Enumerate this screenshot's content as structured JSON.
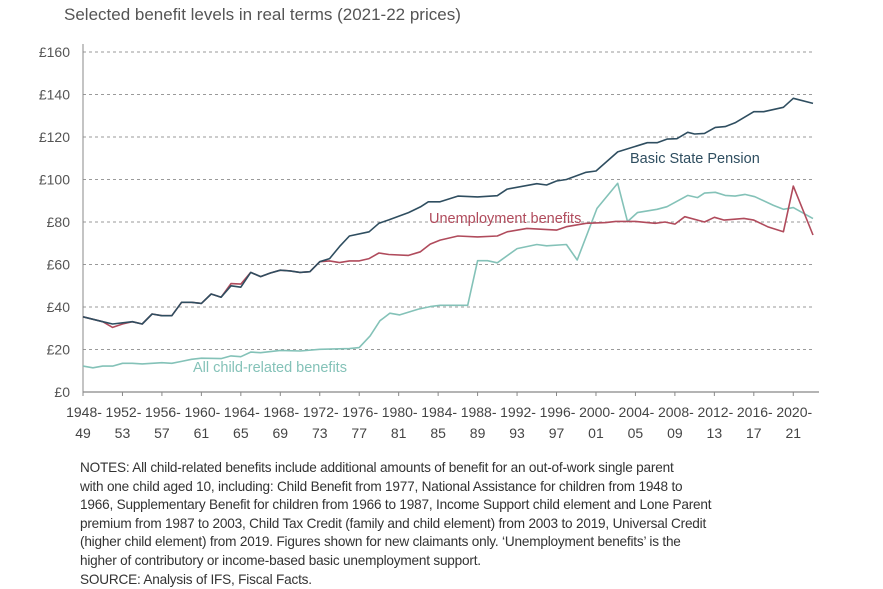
{
  "chart_data": {
    "type": "line",
    "title": "Selected benefit levels in real terms (2021-22 prices)",
    "xlabel": "",
    "ylabel": "",
    "xlim": [
      1948,
      2022
    ],
    "ylim": [
      0,
      160
    ],
    "grid": true,
    "yticks": [
      0,
      20,
      40,
      60,
      80,
      100,
      120,
      140,
      160
    ],
    "ytick_labels": [
      "£0",
      "£20",
      "£40",
      "£60",
      "£80",
      "£100",
      "£120",
      "£140",
      "£160"
    ],
    "xticks": [
      1948,
      1952,
      1956,
      1960,
      1964,
      1968,
      1972,
      1976,
      1980,
      1984,
      1988,
      1992,
      1996,
      2000,
      2004,
      2008,
      2012,
      2016,
      2020
    ],
    "xtick_labels": [
      [
        "1948-",
        "49"
      ],
      [
        "1952-",
        "53"
      ],
      [
        "1956-",
        "57"
      ],
      [
        "1960-",
        "61"
      ],
      [
        "1964-",
        "65"
      ],
      [
        "1968-",
        "69"
      ],
      [
        "1972-",
        "73"
      ],
      [
        "1976-",
        "77"
      ],
      [
        "1980-",
        "81"
      ],
      [
        "1984-",
        "85"
      ],
      [
        "1988-",
        "89"
      ],
      [
        "1992-",
        "93"
      ],
      [
        "1996-",
        "97"
      ],
      [
        "2000-",
        "01"
      ],
      [
        "2004-",
        "05"
      ],
      [
        "2008-",
        "09"
      ],
      [
        "2012-",
        "13"
      ],
      [
        "2016-",
        "17"
      ],
      [
        "2020-",
        "21"
      ]
    ],
    "series": [
      {
        "name": "Basic State Pension",
        "color": "#2f4e60",
        "x": [
          1948,
          1950,
          1951,
          1953,
          1954,
          1955,
          1956,
          1957,
          1958,
          1959,
          1960,
          1961,
          1962,
          1963,
          1964,
          1965,
          1966,
          1967,
          1968,
          1969,
          1970,
          1971,
          1972,
          1973,
          1974,
          1975,
          1977,
          1978,
          1979,
          1981,
          1982.2,
          1983,
          1984.2,
          1986,
          1988,
          1990,
          1991,
          1994,
          1995,
          1996,
          1997,
          1999,
          2000,
          2002.2,
          2005.2,
          2006.2,
          2007.2,
          2008.2,
          2009.3,
          2010,
          2011,
          2012.1,
          2013.1,
          2014.1,
          2016,
          2017,
          2019,
          2020,
          2022
        ],
        "values": [
          35.4,
          33.1,
          32,
          33.1,
          32,
          36.7,
          35.9,
          35.9,
          42.2,
          42.2,
          41.7,
          46.1,
          44.6,
          50,
          49.3,
          56.3,
          54.3,
          56,
          57.3,
          57,
          56.3,
          56.6,
          61.3,
          62.8,
          68.4,
          73.4,
          75.4,
          79.4,
          81,
          84.4,
          87.1,
          89.5,
          89.5,
          92.2,
          91.8,
          92.4,
          95.5,
          98,
          97.4,
          99.3,
          100,
          103.4,
          104,
          113,
          117.3,
          117.3,
          119,
          119.2,
          122.2,
          121.4,
          121.7,
          124.5,
          124.9,
          126.7,
          131.9,
          131.9,
          134,
          138.2,
          135.8
        ]
      },
      {
        "name": "Unemployment benefits",
        "color": "#b04b5c",
        "x": [
          1948,
          1950,
          1951,
          1952,
          1953,
          1954,
          1955,
          1956,
          1957,
          1958,
          1959,
          1960,
          1961,
          1962,
          1963,
          1964,
          1965,
          1966,
          1967,
          1968,
          1969,
          1970,
          1971,
          1972,
          1973,
          1974,
          1975,
          1976,
          1977,
          1978,
          1979,
          1981,
          1982.2,
          1983.2,
          1984.2,
          1986,
          1988,
          1990,
          1991,
          1993,
          1996,
          1997,
          1999,
          2001,
          2002,
          2004,
          2006,
          2007,
          2008,
          2009,
          2011,
          2012,
          2013,
          2015,
          2016,
          2017.4,
          2019,
          2020,
          2022
        ],
        "values": [
          35.4,
          33.1,
          30.4,
          32,
          33.1,
          32,
          36.7,
          35.9,
          35.9,
          42.2,
          42.2,
          41.7,
          46.1,
          44.6,
          51,
          50.8,
          56.3,
          54.3,
          56,
          57.3,
          57,
          56.3,
          56.6,
          61.3,
          61.7,
          60.9,
          61.7,
          61.7,
          62.8,
          65.4,
          64.7,
          64.3,
          66,
          69.6,
          71.5,
          73.4,
          73,
          73.4,
          75.4,
          77,
          76.2,
          77.8,
          79.4,
          79.7,
          80.3,
          80.3,
          79.4,
          80,
          79,
          82.5,
          80,
          82.2,
          80.9,
          81.7,
          80.9,
          77.8,
          75.4,
          96.9,
          73.9
        ]
      },
      {
        "name": "All child-related benefits",
        "color": "#84c2b8",
        "x": [
          1948,
          1949,
          1950,
          1951,
          1952,
          1953,
          1954,
          1956,
          1957,
          1958,
          1959,
          1960,
          1962,
          1963,
          1964,
          1965,
          1966,
          1968,
          1970,
          1972,
          1975,
          1976,
          1977.1,
          1978.1,
          1979.1,
          1980.1,
          1982,
          1983.2,
          1984.2,
          1987,
          1988,
          1989,
          1990,
          1992,
          1994,
          1995,
          1997,
          1998.1,
          2000.1,
          2002.2,
          2003.2,
          2004.2,
          2006.2,
          2007.2,
          2009.3,
          2010.3,
          2011,
          2012.1,
          2013.1,
          2014.1,
          2015.1,
          2016.1,
          2018,
          2019,
          2020,
          2022
        ],
        "values": [
          12.2,
          11.4,
          12.2,
          12.2,
          13.5,
          13.5,
          13.2,
          13.8,
          13.5,
          14.4,
          15.4,
          15.9,
          15.7,
          17,
          16.6,
          18.8,
          18.5,
          19.6,
          19.3,
          20.1,
          20.4,
          20.9,
          26.4,
          33.5,
          37.1,
          36.3,
          39,
          40.2,
          40.8,
          40.8,
          61.8,
          61.8,
          60.8,
          67.5,
          69.4,
          68.8,
          69.4,
          62.1,
          86.4,
          98.2,
          80.2,
          84.4,
          86,
          87.2,
          92.5,
          91.5,
          93.6,
          94,
          92.5,
          92.2,
          93,
          91.9,
          87.8,
          86,
          86.8,
          81.6
        ]
      }
    ],
    "annotations": [
      "Basic State Pension",
      "Unemployment benefits",
      "All child-related benefits"
    ]
  },
  "notes": {
    "lines": [
      "NOTES: All child-related benefits include additional amounts of benefit for an out-of-work single parent",
      "with one child aged 10, including: Child Benefit from 1977, National Assistance for children from 1948 to",
      "1966, Supplementary Benefit for children from 1966 to 1987, Income Support child element and Lone Parent",
      "premium from 1987 to 2003, Child Tax Credit (family and child element) from 2003 to 2019, Universal Credit",
      "(higher child element) from 2019. Figures shown for new claimants only. ‘Unemployment benefits’ is the",
      "higher of contributory or income-based basic unemployment support."
    ],
    "source": "SOURCE: Analysis of IFS, Fiscal Facts."
  }
}
